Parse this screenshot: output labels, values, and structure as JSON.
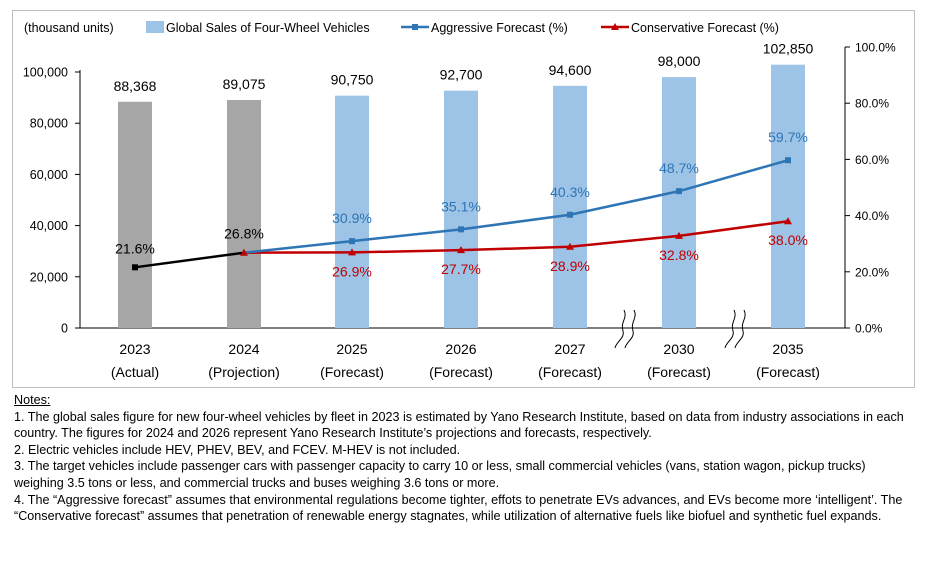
{
  "chart_data": {
    "type": "bar+line",
    "unit_label": "(thousand units)",
    "categories": [
      {
        "year": "2023",
        "sub": "(Actual)",
        "kind": "actual"
      },
      {
        "year": "2024",
        "sub": "(Projection)",
        "kind": "actual"
      },
      {
        "year": "2025",
        "sub": "(Forecast)",
        "kind": "forecast"
      },
      {
        "year": "2026",
        "sub": "(Forecast)",
        "kind": "forecast"
      },
      {
        "year": "2027",
        "sub": "(Forecast)",
        "kind": "forecast"
      },
      {
        "year": "2030",
        "sub": "(Forecast)",
        "kind": "forecast"
      },
      {
        "year": "2035",
        "sub": "(Forecast)",
        "kind": "forecast"
      }
    ],
    "bar_series": {
      "name": "Global Sales of Four-Wheel Vehicles",
      "values": [
        88368,
        89075,
        90750,
        92700,
        94600,
        98000,
        102850
      ],
      "labels": [
        "88,368",
        "89,075",
        "90,750",
        "92,700",
        "94,600",
        "98,000",
        "102,850"
      ]
    },
    "line_series": [
      {
        "name": "Aggressive Forecast (%)",
        "values": [
          21.6,
          26.8,
          30.9,
          35.1,
          40.3,
          48.7,
          59.7
        ],
        "labels": [
          "21.6%",
          "26.8%",
          "30.9%",
          "35.1%",
          "40.3%",
          "48.7%",
          "59.7%"
        ]
      },
      {
        "name": "Conservative Forecast (%)",
        "values": [
          21.6,
          26.8,
          26.9,
          27.7,
          28.9,
          32.8,
          38.0
        ],
        "labels": [
          "21.6%",
          "26.8%",
          "26.9%",
          "27.7%",
          "28.9%",
          "32.8%",
          "38.0%"
        ]
      }
    ],
    "y_left": {
      "min": 0,
      "max": 110000,
      "ticks": [
        0,
        20000,
        40000,
        60000,
        80000,
        100000
      ],
      "tick_labels": [
        "0",
        "20,000",
        "40,000",
        "60,000",
        "80,000",
        "100,000"
      ]
    },
    "y_right": {
      "min": 0,
      "max": 100,
      "ticks": [
        0,
        20,
        40,
        60,
        80,
        100
      ],
      "tick_labels": [
        "0.0%",
        "20.0%",
        "40.0%",
        "60.0%",
        "80.0%",
        "100.0%"
      ]
    },
    "axis_breaks_before": [
      "2030",
      "2035"
    ],
    "colors": {
      "bar_actual": "#a6a6a6",
      "bar_forecast": "#9dc3e6",
      "aggressive": "#2e75b6",
      "conservative": "#c00000",
      "history_line": "#000000",
      "aggressive_label": "#2e75b6",
      "conservative_label": "#c00000"
    }
  },
  "notes": {
    "title": "Notes:",
    "items": [
      "1.  The global sales figure for new four-wheel vehicles by fleet in 2023 is estimated by Yano Research Institute, based on data from industry associations in each country. The figures for 2024 and 2026 represent Yano Research Institute’s projections and forecasts, respectively.",
      "2.  Electric vehicles include HEV, PHEV, BEV, and FCEV. M-HEV is not included.",
      "3. The target vehicles include passenger cars with passenger capacity to carry 10 or less, small commercial vehicles (vans, station wagon, pickup trucks) weighing 3.5 tons or less, and commercial trucks and buses weighing 3.6 tons or more.",
      "4. The “Aggressive forecast” assumes that environmental regulations become tighter, effots to penetrate EVs advances, and EVs become more ‘intelligent’. The “Conservative forecast” assumes that penetration of renewable energy stagnates, while utilization of alternative fuels like biofuel and synthetic fuel expands."
    ]
  }
}
